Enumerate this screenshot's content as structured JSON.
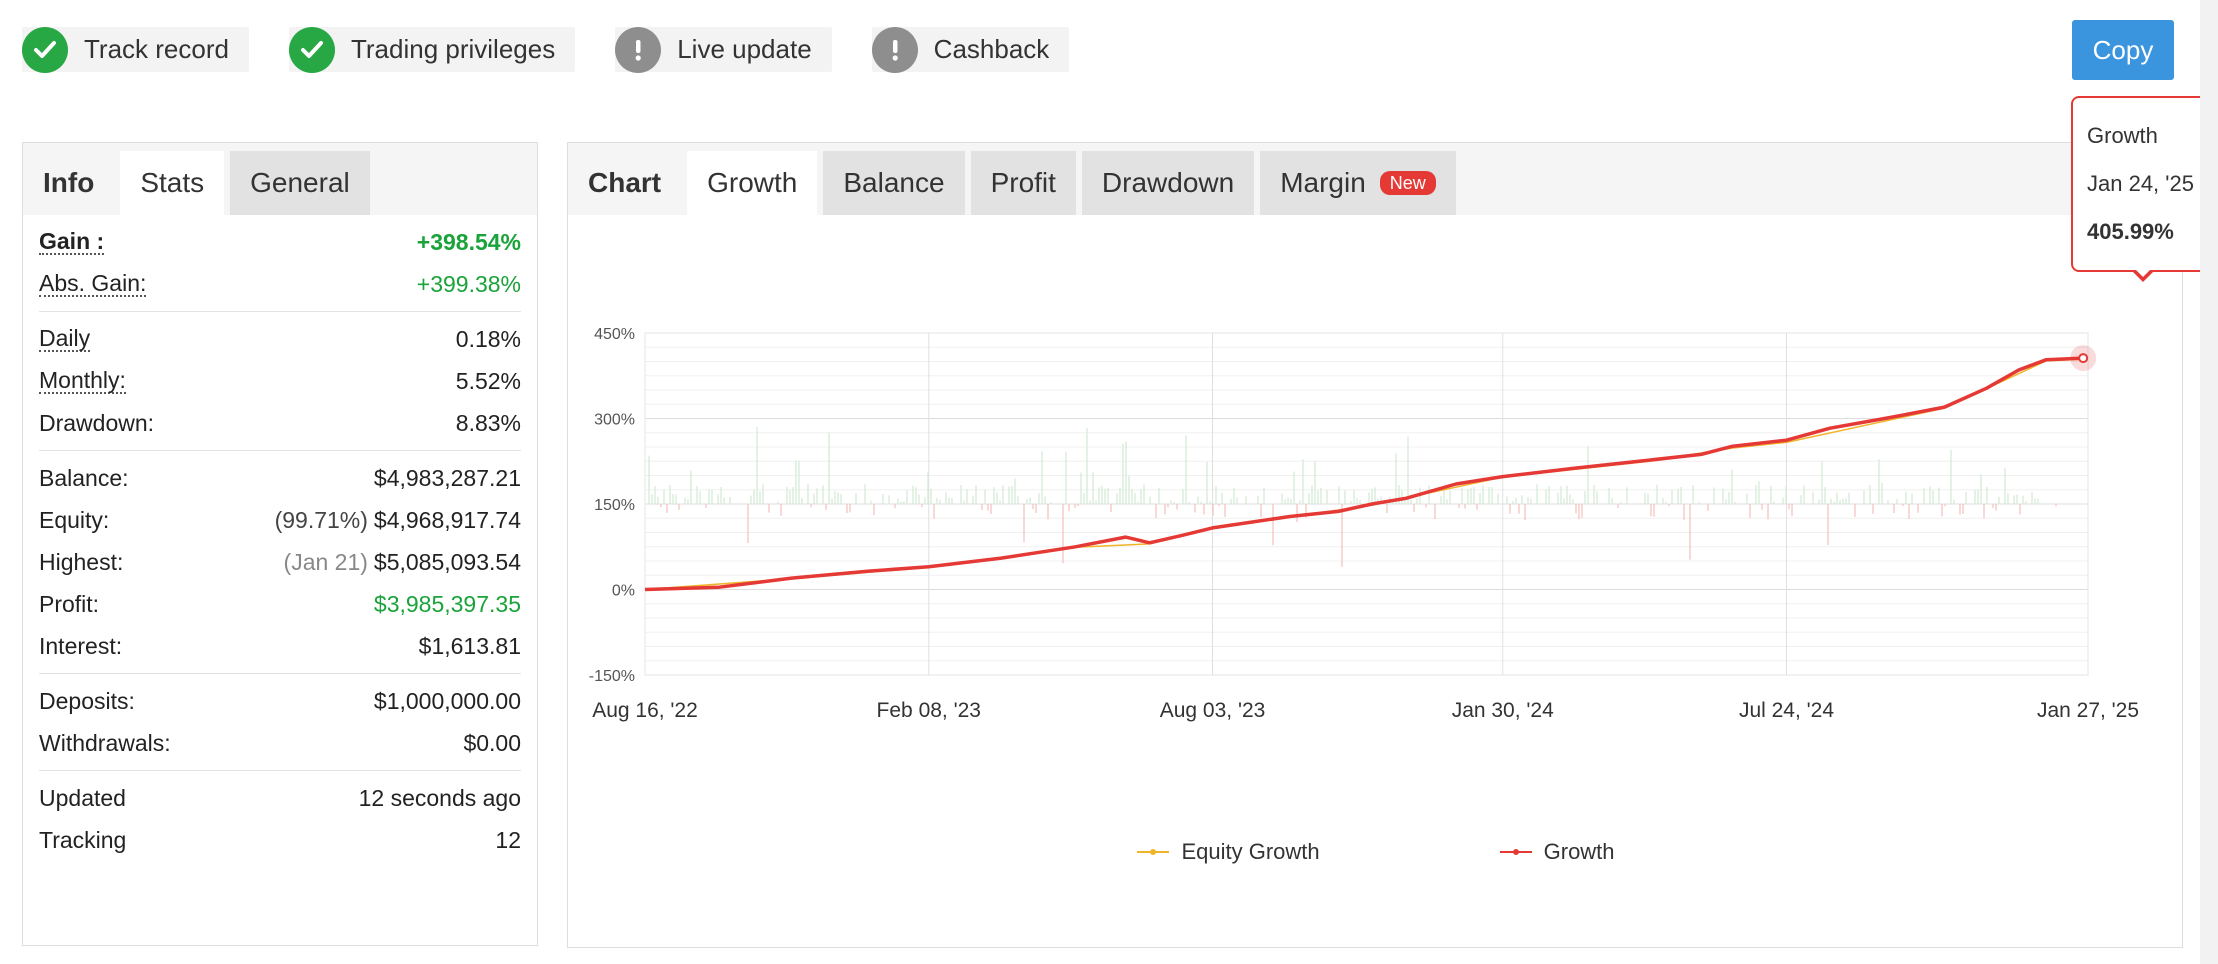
{
  "badges": [
    {
      "label": "Track record",
      "status": "ok",
      "icon": "check-icon"
    },
    {
      "label": "Trading privileges",
      "status": "ok",
      "icon": "check-icon"
    },
    {
      "label": "Live update",
      "status": "warn",
      "icon": "exclamation-icon"
    },
    {
      "label": "Cashback",
      "status": "warn",
      "icon": "exclamation-icon"
    }
  ],
  "copy_button": "Copy",
  "left_tabs": {
    "label": "Info",
    "stats": "Stats",
    "general": "General"
  },
  "stats": {
    "gain": {
      "label": "Gain :",
      "value": "+398.54%"
    },
    "abs_gain": {
      "label": "Abs. Gain:",
      "value": "+399.38%"
    },
    "daily": {
      "label": "Daily",
      "value": "0.18%"
    },
    "monthly": {
      "label": "Monthly:",
      "value": "5.52%"
    },
    "drawdown": {
      "label": "Drawdown:",
      "value": "8.83%"
    },
    "balance": {
      "label": "Balance:",
      "value": "$4,983,287.21"
    },
    "equity": {
      "label": "Equity:",
      "note": "(99.71%)",
      "value": "$4,968,917.74"
    },
    "highest": {
      "label": "Highest:",
      "note": "(Jan 21)",
      "value": "$5,085,093.54"
    },
    "profit": {
      "label": "Profit:",
      "value": "$3,985,397.35"
    },
    "interest": {
      "label": "Interest:",
      "value": "$1,613.81"
    },
    "deposits": {
      "label": "Deposits:",
      "value": "$1,000,000.00"
    },
    "withdrawals": {
      "label": "Withdrawals:",
      "value": "$0.00"
    },
    "updated": {
      "label": "Updated",
      "value": "12 seconds ago"
    },
    "tracking": {
      "label": "Tracking",
      "value": "12"
    }
  },
  "chart_tabs": {
    "label": "Chart",
    "growth": "Growth",
    "balance": "Balance",
    "profit": "Profit",
    "drawdown": "Drawdown",
    "margin": "Margin",
    "new_badge": "New"
  },
  "tooltip": {
    "title": "Growth",
    "date": "Jan 24, '25",
    "value": "405.99%"
  },
  "colors": {
    "growth": "#e53935",
    "equity": "#f0b429",
    "bar_pos": "#d5ecd7",
    "bar_neg": "#f6c3c3",
    "accent": "#3a94de",
    "positive": "#1aa33a"
  },
  "chart_data": {
    "type": "line",
    "y_ticks": [
      "450%",
      "300%",
      "150%",
      "0%",
      "-150%"
    ],
    "ylim": [
      -150,
      450
    ],
    "x_ticks": [
      "Aug 16, '22",
      "Feb 08, '23",
      "Aug 03, '23",
      "Jan 30, '24",
      "Jul 24, '24",
      "Jan 27, '25"
    ],
    "x_range": [
      "2022-08-16",
      "2025-01-27"
    ],
    "grid": true,
    "legend_position": "bottom",
    "series": [
      {
        "name": "Growth",
        "x": [
          "2022-08-16",
          "2022-10-01",
          "2022-11-15",
          "2023-01-01",
          "2023-02-08",
          "2023-03-25",
          "2023-05-10",
          "2023-06-10",
          "2023-06-25",
          "2023-07-15",
          "2023-08-03",
          "2023-09-20",
          "2023-10-20",
          "2023-11-10",
          "2023-12-01",
          "2024-01-01",
          "2024-01-30",
          "2024-03-15",
          "2024-04-30",
          "2024-06-01",
          "2024-06-20",
          "2024-07-24",
          "2024-08-20",
          "2024-09-25",
          "2024-10-30",
          "2024-11-25",
          "2024-12-15",
          "2025-01-01",
          "2025-01-24"
        ],
        "values": [
          0,
          4,
          20,
          32,
          40,
          55,
          75,
          92,
          82,
          95,
          108,
          128,
          137,
          150,
          160,
          185,
          198,
          213,
          227,
          237,
          251,
          262,
          283,
          301,
          320,
          353,
          385,
          403,
          406
        ]
      },
      {
        "name": "Equity Growth",
        "x": [
          "2022-08-16",
          "2022-11-15",
          "2023-02-08",
          "2023-05-10",
          "2023-06-25",
          "2023-08-03",
          "2023-11-10",
          "2024-01-30",
          "2024-04-30",
          "2024-06-20",
          "2024-07-24",
          "2024-10-30",
          "2025-01-01",
          "2025-01-24"
        ],
        "values": [
          0,
          19,
          39,
          74,
          80,
          107,
          148,
          197,
          225,
          248,
          258,
          318,
          401,
          404
        ]
      }
    ],
    "bars_note": "daily gain bars around the 150% baseline"
  }
}
